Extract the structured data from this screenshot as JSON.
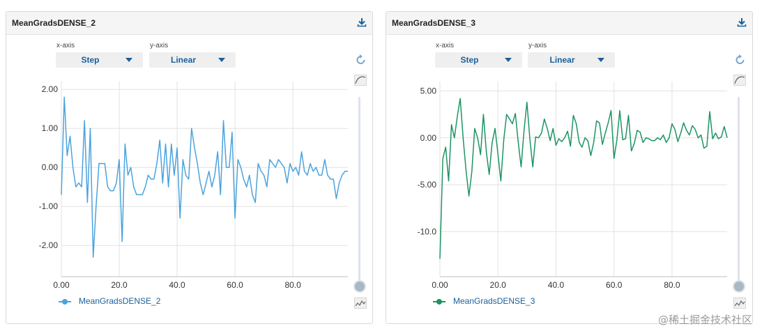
{
  "ui": {
    "xaxis_label": "x-axis",
    "yaxis_label": "y-axis",
    "xaxis_value": "Step",
    "yaxis_value": "Linear",
    "watermark": "@稀土掘金技术社区"
  },
  "panels": [
    {
      "title": "MeanGradsDENSE_2",
      "legend": "MeanGradsDENSE_2",
      "color": "#4ba3dd"
    },
    {
      "title": "MeanGradsDENSE_3",
      "legend": "MeanGradsDENSE_3",
      "color": "#1e9463"
    }
  ],
  "chart_data": [
    {
      "type": "line",
      "title": "MeanGradsDENSE_2",
      "xlim": [
        0,
        99
      ],
      "ylim": [
        -2.8,
        2.2
      ],
      "xticks": [
        0,
        20,
        40,
        60,
        80
      ],
      "xtick_labels": [
        "0.00",
        "20.0",
        "40.0",
        "60.0",
        "80.0"
      ],
      "yticks": [
        2,
        1,
        0,
        -1,
        -2
      ],
      "ytick_labels": [
        "2.00",
        "1.00",
        "0.00",
        "-1.00",
        "-2.00"
      ],
      "series": [
        {
          "name": "MeanGradsDENSE_2",
          "color": "#4ba3dd",
          "x": [
            0,
            1,
            2,
            3,
            4,
            5,
            6,
            7,
            8,
            9,
            10,
            11,
            12,
            13,
            14,
            15,
            16,
            17,
            18,
            19,
            20,
            21,
            22,
            23,
            24,
            25,
            26,
            27,
            28,
            29,
            30,
            31,
            32,
            33,
            34,
            35,
            36,
            37,
            38,
            39,
            40,
            41,
            42,
            43,
            44,
            45,
            46,
            47,
            48,
            49,
            50,
            51,
            52,
            53,
            54,
            55,
            56,
            57,
            58,
            59,
            60,
            61,
            62,
            63,
            64,
            65,
            66,
            67,
            68,
            69,
            70,
            71,
            72,
            73,
            74,
            75,
            76,
            77,
            78,
            79,
            80,
            81,
            82,
            83,
            84,
            85,
            86,
            87,
            88,
            89,
            90,
            91,
            92,
            93,
            94,
            95,
            96,
            97,
            98,
            99
          ],
          "y": [
            -0.7,
            1.8,
            0.3,
            0.8,
            0.0,
            -0.5,
            -0.4,
            -0.5,
            1.2,
            -0.9,
            1.0,
            -2.3,
            -1.0,
            0.1,
            0.1,
            0.1,
            -0.5,
            -0.6,
            -0.6,
            -0.4,
            0.2,
            -1.9,
            0.6,
            -0.2,
            0.0,
            -0.5,
            -0.7,
            -0.7,
            -0.7,
            -0.5,
            -0.2,
            -0.3,
            -0.3,
            0.1,
            0.7,
            -0.4,
            0.6,
            -0.5,
            0.6,
            -0.2,
            0.5,
            -1.3,
            0.2,
            -0.2,
            -0.3,
            1.0,
            0.5,
            0.1,
            -0.4,
            -0.7,
            -0.4,
            -0.1,
            -0.5,
            -0.2,
            0.4,
            -0.7,
            1.2,
            0.0,
            0.0,
            0.9,
            -1.3,
            0.2,
            0.0,
            -0.3,
            -0.5,
            -0.2,
            -0.7,
            -0.9,
            0.1,
            -0.1,
            -0.2,
            -0.5,
            0.2,
            0.1,
            0.0,
            0.2,
            0.1,
            0.0,
            -0.4,
            0.1,
            -0.1,
            0.0,
            -0.2,
            0.4,
            -0.1,
            -0.2,
            0.1,
            -0.1,
            0.0,
            -0.2,
            -0.2,
            0.2,
            -0.2,
            -0.3,
            -0.3,
            -0.8,
            -0.4,
            -0.2,
            -0.1,
            -0.1
          ]
        }
      ]
    },
    {
      "type": "line",
      "title": "MeanGradsDENSE_3",
      "xlim": [
        0,
        99
      ],
      "ylim": [
        -14.8,
        6.0
      ],
      "xticks": [
        0,
        20,
        40,
        60,
        80
      ],
      "xtick_labels": [
        "0.00",
        "20.0",
        "40.0",
        "60.0",
        "80.0"
      ],
      "yticks": [
        5,
        0,
        -5,
        -10
      ],
      "ytick_labels": [
        "5.00",
        "0.00",
        "-5.00",
        "-10.0"
      ],
      "series": [
        {
          "name": "MeanGradsDENSE_3",
          "color": "#1e9463",
          "x": [
            0,
            1,
            2,
            3,
            4,
            5,
            6,
            7,
            8,
            9,
            10,
            11,
            12,
            13,
            14,
            15,
            16,
            17,
            18,
            19,
            20,
            21,
            22,
            23,
            24,
            25,
            26,
            27,
            28,
            29,
            30,
            31,
            32,
            33,
            34,
            35,
            36,
            37,
            38,
            39,
            40,
            41,
            42,
            43,
            44,
            45,
            46,
            47,
            48,
            49,
            50,
            51,
            52,
            53,
            54,
            55,
            56,
            57,
            58,
            59,
            60,
            61,
            62,
            63,
            64,
            65,
            66,
            67,
            68,
            69,
            70,
            71,
            72,
            73,
            74,
            75,
            76,
            77,
            78,
            79,
            80,
            81,
            82,
            83,
            84,
            85,
            86,
            87,
            88,
            89,
            90,
            91,
            92,
            93,
            94,
            95,
            96,
            97,
            98,
            99
          ],
          "y": [
            -12.9,
            -2.2,
            -1.0,
            -4.6,
            1.4,
            0.0,
            2.3,
            4.2,
            0.0,
            -3.5,
            -6.2,
            -3.6,
            1.0,
            0.0,
            -1.8,
            2.5,
            -1.5,
            -3.9,
            -0.5,
            1.0,
            -1.7,
            -4.6,
            -0.2,
            2.5,
            2.0,
            1.5,
            2.6,
            -0.5,
            -3.1,
            0.8,
            3.8,
            -0.1,
            -3.1,
            0.1,
            0.0,
            0.5,
            2.0,
            1.0,
            -0.3,
            1.0,
            -0.8,
            -0.1,
            -0.4,
            0.0,
            0.7,
            -0.9,
            2.4,
            1.5,
            -0.5,
            -1.0,
            0.0,
            -0.3,
            -1.9,
            -0.5,
            1.8,
            1.6,
            -0.7,
            0.5,
            1.6,
            2.9,
            -2.2,
            -0.2,
            2.9,
            -0.2,
            -0.1,
            2.4,
            -1.4,
            -0.6,
            0.8,
            0.6,
            -0.5,
            0.0,
            -0.1,
            -0.3,
            -0.3,
            0.0,
            -0.2,
            0.3,
            -0.5,
            0.0,
            1.5,
            0.9,
            -0.4,
            0.5,
            1.6,
            0.8,
            0.3,
            1.3,
            0.9,
            0.0,
            0.3,
            -1.1,
            -0.9,
            2.8,
            -0.1,
            0.5,
            -0.1,
            0.1,
            1.2,
            0.0
          ]
        }
      ]
    }
  ]
}
